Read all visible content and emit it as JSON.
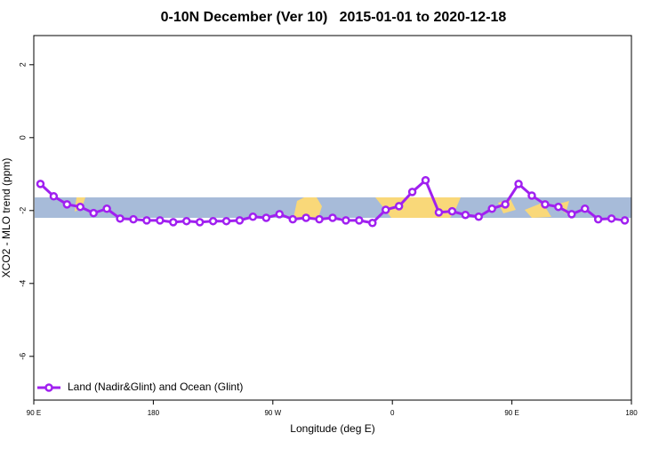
{
  "chart_data": {
    "type": "line",
    "title": "0-10N December (Ver 10)   2015-01-01 to 2020-12-18",
    "x_label": "Longitude (deg E)",
    "y_label": "XCO2 - MLO trend (ppm)",
    "x": [
      95,
      105,
      115,
      125,
      135,
      145,
      155,
      165,
      175,
      185,
      195,
      205,
      215,
      225,
      235,
      245,
      255,
      265,
      275,
      285,
      295,
      305,
      315,
      325,
      335,
      345,
      355,
      365,
      375,
      385,
      395,
      405,
      415,
      425,
      435,
      445,
      455,
      465,
      475,
      485,
      495,
      505,
      515,
      525,
      535
    ],
    "series": [
      {
        "name": "Land (Nadir&Glint) and Ocean (Glint)",
        "color": "#a020f0",
        "values": [
          -1.27,
          -1.61,
          -1.83,
          -1.9,
          -2.07,
          -1.95,
          -2.22,
          -2.24,
          -2.27,
          -2.27,
          -2.32,
          -2.29,
          -2.32,
          -2.29,
          -2.29,
          -2.27,
          -2.17,
          -2.2,
          -2.1,
          -2.24,
          -2.2,
          -2.24,
          -2.2,
          -2.27,
          -2.27,
          -2.34,
          -1.98,
          -1.88,
          -1.49,
          -1.17,
          -2.05,
          -2.02,
          -2.12,
          -2.17,
          -1.95,
          -1.83,
          -1.27,
          -1.59,
          -1.83,
          -1.9,
          -2.1,
          -1.95,
          -2.24,
          -2.22,
          -2.27
        ]
      }
    ],
    "xlim": [
      90,
      540
    ],
    "xticks": [
      {
        "value": 90,
        "label": "90 E"
      },
      180,
      {
        "value": 270,
        "label": "90 W"
      },
      {
        "value": 360,
        "label": "0"
      },
      {
        "value": 450,
        "label": "90 E"
      },
      {
        "value": 540,
        "label": "180"
      }
    ],
    "ylim": [
      -7.2,
      2.8
    ],
    "yticks": [
      2,
      0,
      -2,
      -4,
      -6
    ],
    "legend": "bottom-left"
  }
}
